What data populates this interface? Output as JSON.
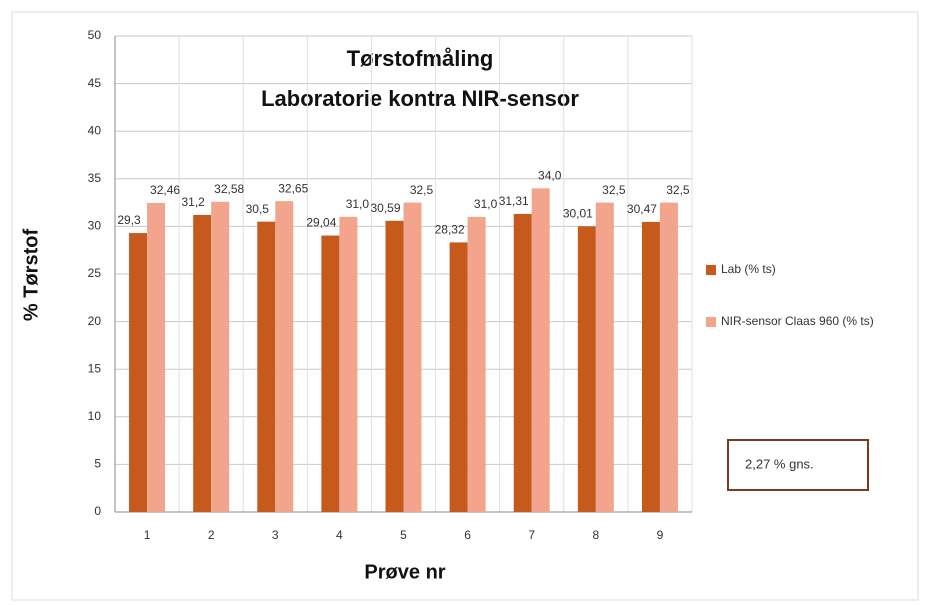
{
  "chart_data": {
    "type": "bar",
    "title": "Tørstofmåling",
    "subtitle": "Laboratorie kontra NIR-sensor",
    "y_label": "% Tørstof",
    "x_label": "Prøve nr",
    "categories": [
      "1",
      "2",
      "3",
      "4",
      "5",
      "6",
      "7",
      "8",
      "9"
    ],
    "series": [
      {
        "name": "Lab (% ts)",
        "color": "#c65a1c",
        "values": [
          29.3,
          31.2,
          30.5,
          29.04,
          30.59,
          28.32,
          31.31,
          30.01,
          30.47
        ],
        "value_labels": [
          "29,3",
          "31,2",
          "30,5",
          "29,04",
          "30,59",
          "28,32",
          "31,31",
          "30,01",
          "30,47"
        ]
      },
      {
        "name": "NIR-sensor Claas 960 (% ts)",
        "color": "#f2a58c",
        "values": [
          32.46,
          32.58,
          32.65,
          31.0,
          32.5,
          31.0,
          34.0,
          32.5,
          32.5
        ],
        "value_labels": [
          "32,46",
          "32,58",
          "32,65",
          "31,0",
          "32,5",
          "31,0",
          "34,0",
          "32,5",
          "32,5"
        ]
      }
    ],
    "ylim": [
      0,
      50
    ],
    "yticks": [
      0,
      5,
      10,
      15,
      20,
      25,
      30,
      35,
      40,
      45,
      50
    ],
    "grid": true,
    "legend": "right",
    "annotation": "2,27 % gns."
  }
}
